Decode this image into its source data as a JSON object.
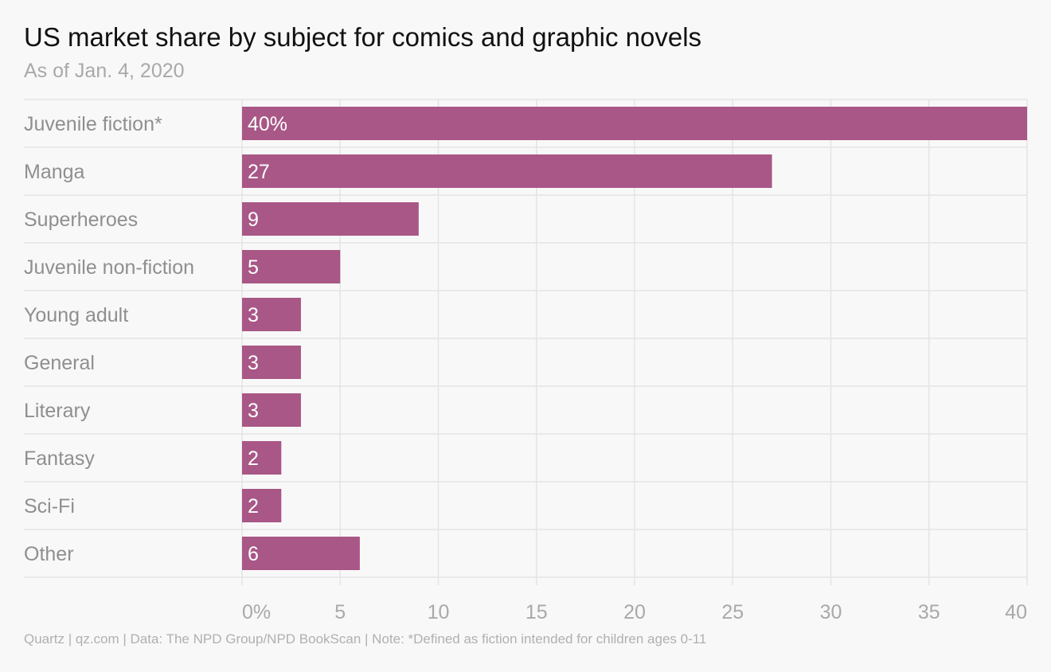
{
  "title": "US market share by subject for comics and graphic novels",
  "subtitle": "As of Jan. 4, 2020",
  "footer": "Quartz | qz.com | Data: The NPD Group/NPD BookScan | Note: *Defined as fiction intended for children ages 0-11",
  "colors": {
    "bar": "#a85786",
    "background": "#f8f8f8",
    "grid": "#e4e4e4",
    "label": "#8f8f8f",
    "bar_label": "#ffffff"
  },
  "chart_data": {
    "type": "bar",
    "orientation": "horizontal",
    "categories": [
      "Juvenile fiction*",
      "Manga",
      "Superheroes",
      "Juvenile non-fiction",
      "Young adult",
      "General",
      "Literary",
      "Fantasy",
      "Sci-Fi",
      "Other"
    ],
    "values": [
      40,
      27,
      9,
      5,
      3,
      3,
      3,
      2,
      2,
      6
    ],
    "value_labels": [
      "40%",
      "27",
      "9",
      "5",
      "3",
      "3",
      "3",
      "2",
      "2",
      "6"
    ],
    "xlim": [
      0,
      40
    ],
    "x_ticks": [
      0,
      5,
      10,
      15,
      20,
      25,
      30,
      35,
      40
    ],
    "x_tick_labels": [
      "0%",
      "5",
      "10",
      "15",
      "20",
      "25",
      "30",
      "35",
      "40"
    ],
    "grid": true,
    "unit": "%"
  }
}
